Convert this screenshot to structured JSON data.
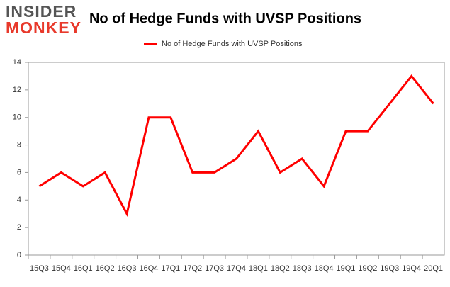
{
  "logo": {
    "top": "INSIDER",
    "bottom": "MONKEY"
  },
  "chart_data": {
    "type": "line",
    "title": "No of Hedge Funds with UVSP Positions",
    "categories": [
      "15Q3",
      "15Q4",
      "16Q1",
      "16Q2",
      "16Q3",
      "16Q4",
      "17Q1",
      "17Q2",
      "17Q3",
      "17Q4",
      "18Q1",
      "18Q2",
      "18Q3",
      "18Q4",
      "19Q1",
      "19Q2",
      "19Q3",
      "19Q4",
      "20Q1"
    ],
    "series": [
      {
        "name": "No of Hedge Funds with UVSP Positions",
        "color": "#ff0000",
        "values": [
          5,
          6,
          5,
          6,
          3,
          10,
          10,
          6,
          6,
          7,
          9,
          6,
          7,
          5,
          9,
          9,
          11,
          13,
          11
        ]
      }
    ],
    "ylim": [
      0,
      14
    ],
    "yticks": [
      0,
      2,
      4,
      6,
      8,
      10,
      12,
      14
    ],
    "grid": false,
    "legend": "top"
  }
}
